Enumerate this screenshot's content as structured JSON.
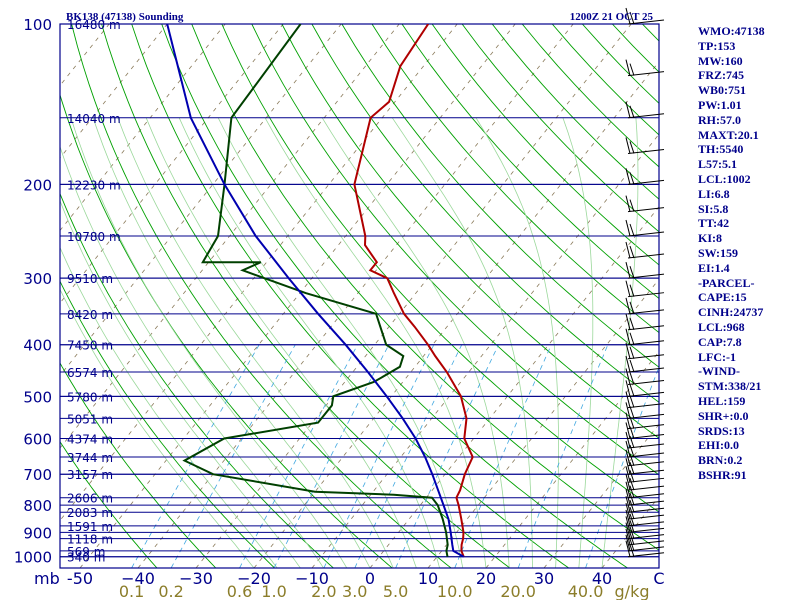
{
  "chart_data": {
    "type": "line",
    "title": "BK138 (47138) Sounding",
    "datetime": "1200Z 21 OCT 25",
    "pressure_unit": "mb",
    "mixing_ratio_unit": "g/kg",
    "pressure_levels": [
      100,
      200,
      300,
      400,
      500,
      600,
      700,
      800,
      900,
      1000
    ],
    "temperature_ticks": [
      -50,
      -40,
      -30,
      -20,
      -10,
      0,
      10,
      20,
      30,
      40
    ],
    "temperature_tick_labels": [
      "-50",
      "−40",
      "−30",
      "−20",
      "−10",
      "0",
      "10",
      "20",
      "30",
      "40"
    ],
    "corner_label": "C",
    "xlim": [
      -50,
      50
    ],
    "ylim": [
      1050,
      100
    ],
    "mixing_ratio_labels": [
      {
        "g": 0.1,
        "label": "0.1"
      },
      {
        "g": 0.2,
        "label": "0.2"
      },
      {
        "g": 0.6,
        "label": "0.6"
      },
      {
        "g": 1.0,
        "label": "1.0"
      },
      {
        "g": 2.0,
        "label": "2.0"
      },
      {
        "g": 3.0,
        "label": "3.0"
      },
      {
        "g": 5.0,
        "label": "5.0"
      },
      {
        "g": 10.0,
        "label": "10.0"
      },
      {
        "g": 20.0,
        "label": "20.0"
      },
      {
        "g": 40.0,
        "label": "40.0"
      }
    ],
    "height_levels": [
      {
        "p": 1000,
        "label": "340 m"
      },
      {
        "p": 975,
        "label": "569 m"
      },
      {
        "p": 925,
        "label": "1118 m"
      },
      {
        "p": 875,
        "label": "1591 m"
      },
      {
        "p": 825,
        "label": "2083 m"
      },
      {
        "p": 775,
        "label": "2606 m"
      },
      {
        "p": 700,
        "label": "3157 m"
      },
      {
        "p": 650,
        "label": "3744 m"
      },
      {
        "p": 600,
        "label": "4374 m"
      },
      {
        "p": 550,
        "label": "5051 m"
      },
      {
        "p": 500,
        "label": "5780 m"
      },
      {
        "p": 450,
        "label": "6574 m"
      },
      {
        "p": 400,
        "label": "7450 m"
      },
      {
        "p": 350,
        "label": "8420 m"
      },
      {
        "p": 300,
        "label": "9510 m"
      },
      {
        "p": 250,
        "label": "10780 m"
      },
      {
        "p": 200,
        "label": "12230 m"
      },
      {
        "p": 150,
        "label": "14040 m"
      },
      {
        "p": 100,
        "label": "16480 m"
      }
    ],
    "series": [
      {
        "role": "temperature",
        "color": "#b00000",
        "points": [
          [
            1000,
            14.6
          ],
          [
            975,
            13.4
          ],
          [
            950,
            12.6
          ],
          [
            925,
            12.0
          ],
          [
            900,
            11.2
          ],
          [
            850,
            9.0
          ],
          [
            800,
            6.6
          ],
          [
            775,
            5.2
          ],
          [
            750,
            4.8
          ],
          [
            700,
            3.4
          ],
          [
            650,
            2.4
          ],
          [
            600,
            -1.6
          ],
          [
            550,
            -4.0
          ],
          [
            500,
            -8.0
          ],
          [
            450,
            -13.8
          ],
          [
            420,
            -18.0
          ],
          [
            400,
            -20.8
          ],
          [
            370,
            -25.6
          ],
          [
            350,
            -29.2
          ],
          [
            320,
            -33.8
          ],
          [
            300,
            -37.0
          ],
          [
            290,
            -41.0
          ],
          [
            280,
            -41.0
          ],
          [
            260,
            -45.4
          ],
          [
            250,
            -46.6
          ],
          [
            200,
            -55.6
          ],
          [
            150,
            -62.0
          ],
          [
            140,
            -61.0
          ],
          [
            120,
            -64.0
          ],
          [
            100,
            -65.0
          ]
        ]
      },
      {
        "role": "dewpoint",
        "color": "#004000",
        "points": [
          [
            1000,
            11.8
          ],
          [
            975,
            10.8
          ],
          [
            950,
            10.2
          ],
          [
            900,
            8.2
          ],
          [
            850,
            5.8
          ],
          [
            800,
            3.0
          ],
          [
            775,
            1.0
          ],
          [
            765,
            -6.0
          ],
          [
            755,
            -20.0
          ],
          [
            700,
            -40.0
          ],
          [
            660,
            -46.8
          ],
          [
            600,
            -43.0
          ],
          [
            560,
            -29.0
          ],
          [
            520,
            -29.0
          ],
          [
            500,
            -30.0
          ],
          [
            470,
            -25.0
          ],
          [
            440,
            -22.6
          ],
          [
            420,
            -23.5
          ],
          [
            400,
            -28.0
          ],
          [
            350,
            -34.0
          ],
          [
            320,
            -49.0
          ],
          [
            290,
            -63.0
          ],
          [
            280,
            -61.0
          ],
          [
            280,
            -71.0
          ],
          [
            250,
            -72.0
          ],
          [
            200,
            -78.0
          ],
          [
            150,
            -86.0
          ],
          [
            100,
            -87.0
          ]
        ]
      },
      {
        "role": "parcel",
        "color": "#0000b0",
        "points": [
          [
            1000,
            14.6
          ],
          [
            975,
            12.0
          ],
          [
            950,
            11.0
          ],
          [
            900,
            9.0
          ],
          [
            850,
            6.8
          ],
          [
            800,
            4.0
          ],
          [
            750,
            1.0
          ],
          [
            700,
            -2.2
          ],
          [
            650,
            -5.8
          ],
          [
            600,
            -10.0
          ],
          [
            550,
            -15.0
          ],
          [
            500,
            -20.8
          ],
          [
            450,
            -27.4
          ],
          [
            400,
            -35.0
          ],
          [
            350,
            -44.0
          ],
          [
            300,
            -54.0
          ],
          [
            250,
            -65.5
          ],
          [
            200,
            -78.0
          ],
          [
            150,
            -93.0
          ],
          [
            100,
            -110.0
          ]
        ]
      }
    ]
  },
  "indices": [
    "WMO:47138",
    "TP:153",
    "MW:160",
    "FRZ:745",
    "WB0:751",
    "PW:1.01",
    "RH:57.0",
    "MAXT:20.1",
    "TH:5540",
    "L57:5.1",
    "LCL:1002",
    "LI:6.8",
    "SI:5.8",
    "TT:42",
    "KI:8",
    "SW:159",
    "EI:1.4",
    "-PARCEL-",
    "CAPE:15",
    "CINH:24737",
    "LCL:968",
    "CAP:7.8",
    "LFC:-1",
    "-WIND-",
    "STM:338/21",
    "HEL:159",
    "SHR+:0.0",
    "SRDS:13",
    "EHI:0.0",
    "BRN:0.2",
    "BSHR:91"
  ],
  "colors": {
    "isobar": "#00008b",
    "dry_adiabat": "#00a000",
    "moist_adiabat": "#9bd89b",
    "mixing_ratio": "#40a8e0",
    "isotherm": "#8a7a5a",
    "text": "#00008b",
    "mix_label": "#8b7d2a",
    "frame": "#00008b"
  }
}
